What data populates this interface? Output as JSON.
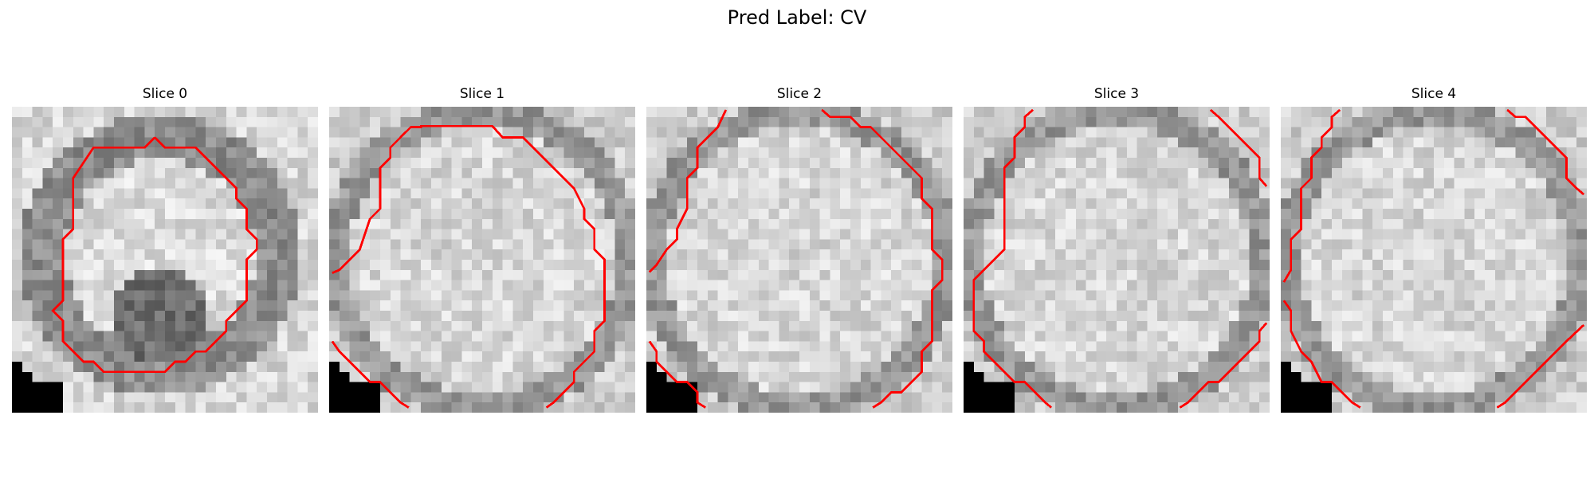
{
  "title": "Pred Label: CV",
  "slices": [
    {
      "label": "Slice 0"
    },
    {
      "label": "Slice 1"
    },
    {
      "label": "Slice 2"
    },
    {
      "label": "Slice 3"
    },
    {
      "label": "Slice 4"
    }
  ],
  "colors": {
    "contour": "#ff0000",
    "background": "#ffffff"
  }
}
